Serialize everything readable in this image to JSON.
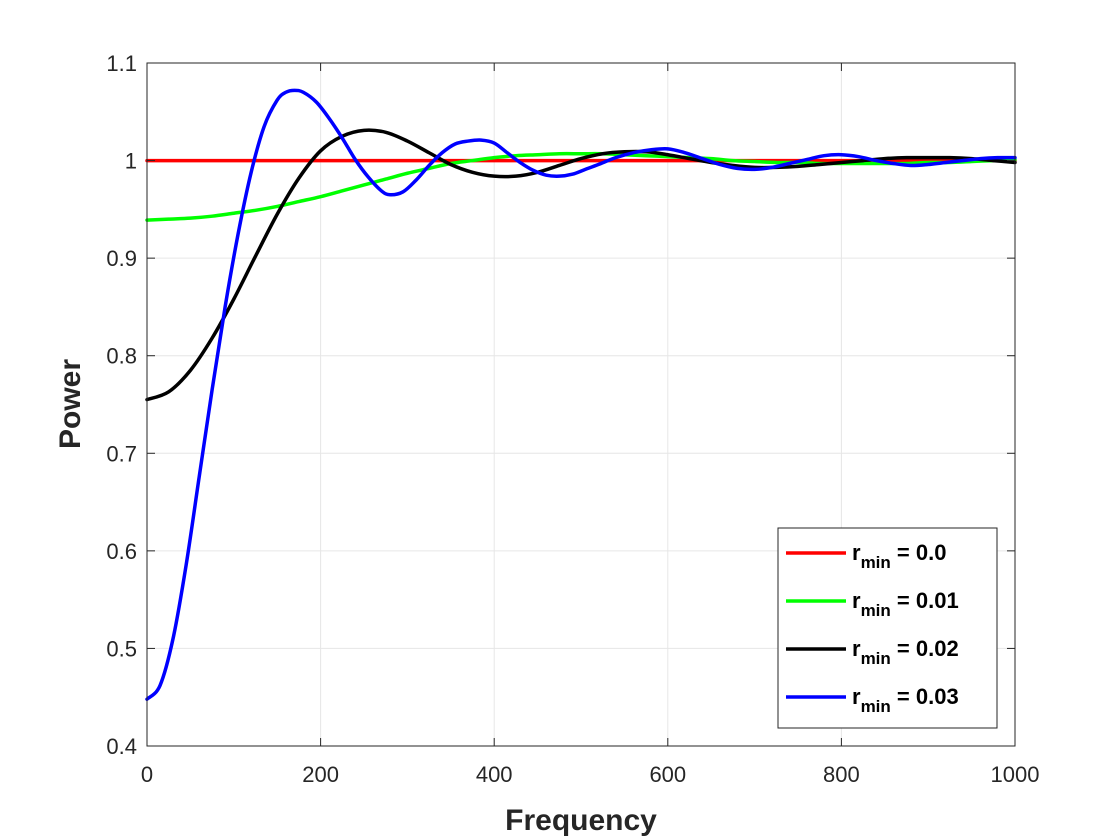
{
  "chart_data": {
    "type": "line",
    "xlabel": "Frequency",
    "ylabel": "Power",
    "xlim": [
      0,
      1000
    ],
    "ylim": [
      0.4,
      1.1
    ],
    "x_ticks": [
      "0",
      "200",
      "400",
      "600",
      "800",
      "1000"
    ],
    "y_ticks": [
      "0.4",
      "0.5",
      "0.6",
      "0.7",
      "0.8",
      "0.9",
      "1",
      "1.1"
    ],
    "grid": true,
    "legend_position": "bottom-right",
    "series": [
      {
        "name_main": "r",
        "name_sub": "min",
        "name_rest": " = 0.0",
        "color": "#ff0000",
        "x": [
          0,
          100,
          200,
          300,
          400,
          500,
          600,
          700,
          800,
          900,
          1000
        ],
        "y": [
          1.0,
          1.0,
          1.0,
          1.0,
          1.0,
          1.0,
          1.0,
          1.0,
          1.0,
          1.0,
          1.0
        ]
      },
      {
        "name_main": "r",
        "name_sub": "min",
        "name_rest": " = 0.01",
        "color": "#00ff00",
        "x": [
          0,
          25,
          50,
          75,
          100,
          125,
          150,
          175,
          200,
          225,
          250,
          275,
          300,
          325,
          350,
          375,
          400,
          425,
          450,
          475,
          500,
          525,
          550,
          575,
          600,
          625,
          650,
          675,
          700,
          725,
          750,
          775,
          800,
          825,
          850,
          875,
          900,
          925,
          950,
          975,
          1000
        ],
        "y": [
          0.939,
          0.94,
          0.941,
          0.943,
          0.946,
          0.949,
          0.953,
          0.958,
          0.963,
          0.969,
          0.975,
          0.981,
          0.987,
          0.992,
          0.997,
          1.0,
          1.003,
          1.005,
          1.006,
          1.007,
          1.007,
          1.007,
          1.006,
          1.005,
          1.004,
          1.003,
          1.002,
          1.0,
          0.999,
          0.998,
          0.998,
          0.997,
          0.997,
          0.997,
          0.997,
          0.997,
          0.998,
          0.998,
          0.999,
          1.0,
          1.001
        ]
      },
      {
        "name_main": "r",
        "name_sub": "min",
        "name_rest": " = 0.02",
        "color": "#000000",
        "x": [
          0,
          25,
          50,
          75,
          100,
          125,
          150,
          175,
          200,
          225,
          250,
          275,
          300,
          325,
          350,
          375,
          400,
          425,
          450,
          475,
          500,
          525,
          550,
          575,
          600,
          625,
          650,
          675,
          700,
          725,
          750,
          775,
          800,
          825,
          850,
          875,
          900,
          925,
          950,
          975,
          1000
        ],
        "y": [
          0.755,
          0.763,
          0.785,
          0.818,
          0.858,
          0.902,
          0.945,
          0.982,
          1.01,
          1.025,
          1.031,
          1.029,
          1.02,
          1.008,
          0.996,
          0.988,
          0.984,
          0.984,
          0.988,
          0.995,
          1.002,
          1.007,
          1.009,
          1.009,
          1.006,
          1.002,
          0.998,
          0.995,
          0.993,
          0.993,
          0.994,
          0.996,
          0.998,
          1.0,
          1.002,
          1.003,
          1.003,
          1.003,
          1.002,
          1.0,
          0.998
        ]
      },
      {
        "name_main": "r",
        "name_sub": "min",
        "name_rest": " = 0.03",
        "color": "#0000ff",
        "x": [
          0,
          15,
          30,
          45,
          60,
          75,
          90,
          105,
          120,
          135,
          150,
          160,
          170,
          180,
          195,
          210,
          225,
          240,
          255,
          270,
          280,
          295,
          310,
          325,
          340,
          355,
          370,
          385,
          400,
          415,
          430,
          445,
          460,
          475,
          490,
          505,
          520,
          540,
          560,
          580,
          600,
          620,
          640,
          660,
          680,
          700,
          720,
          740,
          760,
          780,
          800,
          820,
          840,
          860,
          880,
          900,
          920,
          940,
          960,
          980,
          1000
        ],
        "y": [
          0.448,
          0.462,
          0.51,
          0.585,
          0.675,
          0.765,
          0.85,
          0.925,
          0.988,
          1.035,
          1.062,
          1.07,
          1.072,
          1.07,
          1.06,
          1.043,
          1.023,
          1.001,
          0.983,
          0.969,
          0.965,
          0.968,
          0.98,
          0.995,
          1.008,
          1.017,
          1.02,
          1.021,
          1.018,
          1.008,
          0.998,
          0.99,
          0.985,
          0.984,
          0.986,
          0.991,
          0.996,
          1.003,
          1.008,
          1.011,
          1.012,
          1.008,
          1.002,
          0.996,
          0.992,
          0.991,
          0.993,
          0.997,
          1.001,
          1.005,
          1.006,
          1.004,
          1.0,
          0.997,
          0.995,
          0.996,
          0.998,
          1.0,
          1.002,
          1.003,
          1.003
        ]
      }
    ]
  }
}
